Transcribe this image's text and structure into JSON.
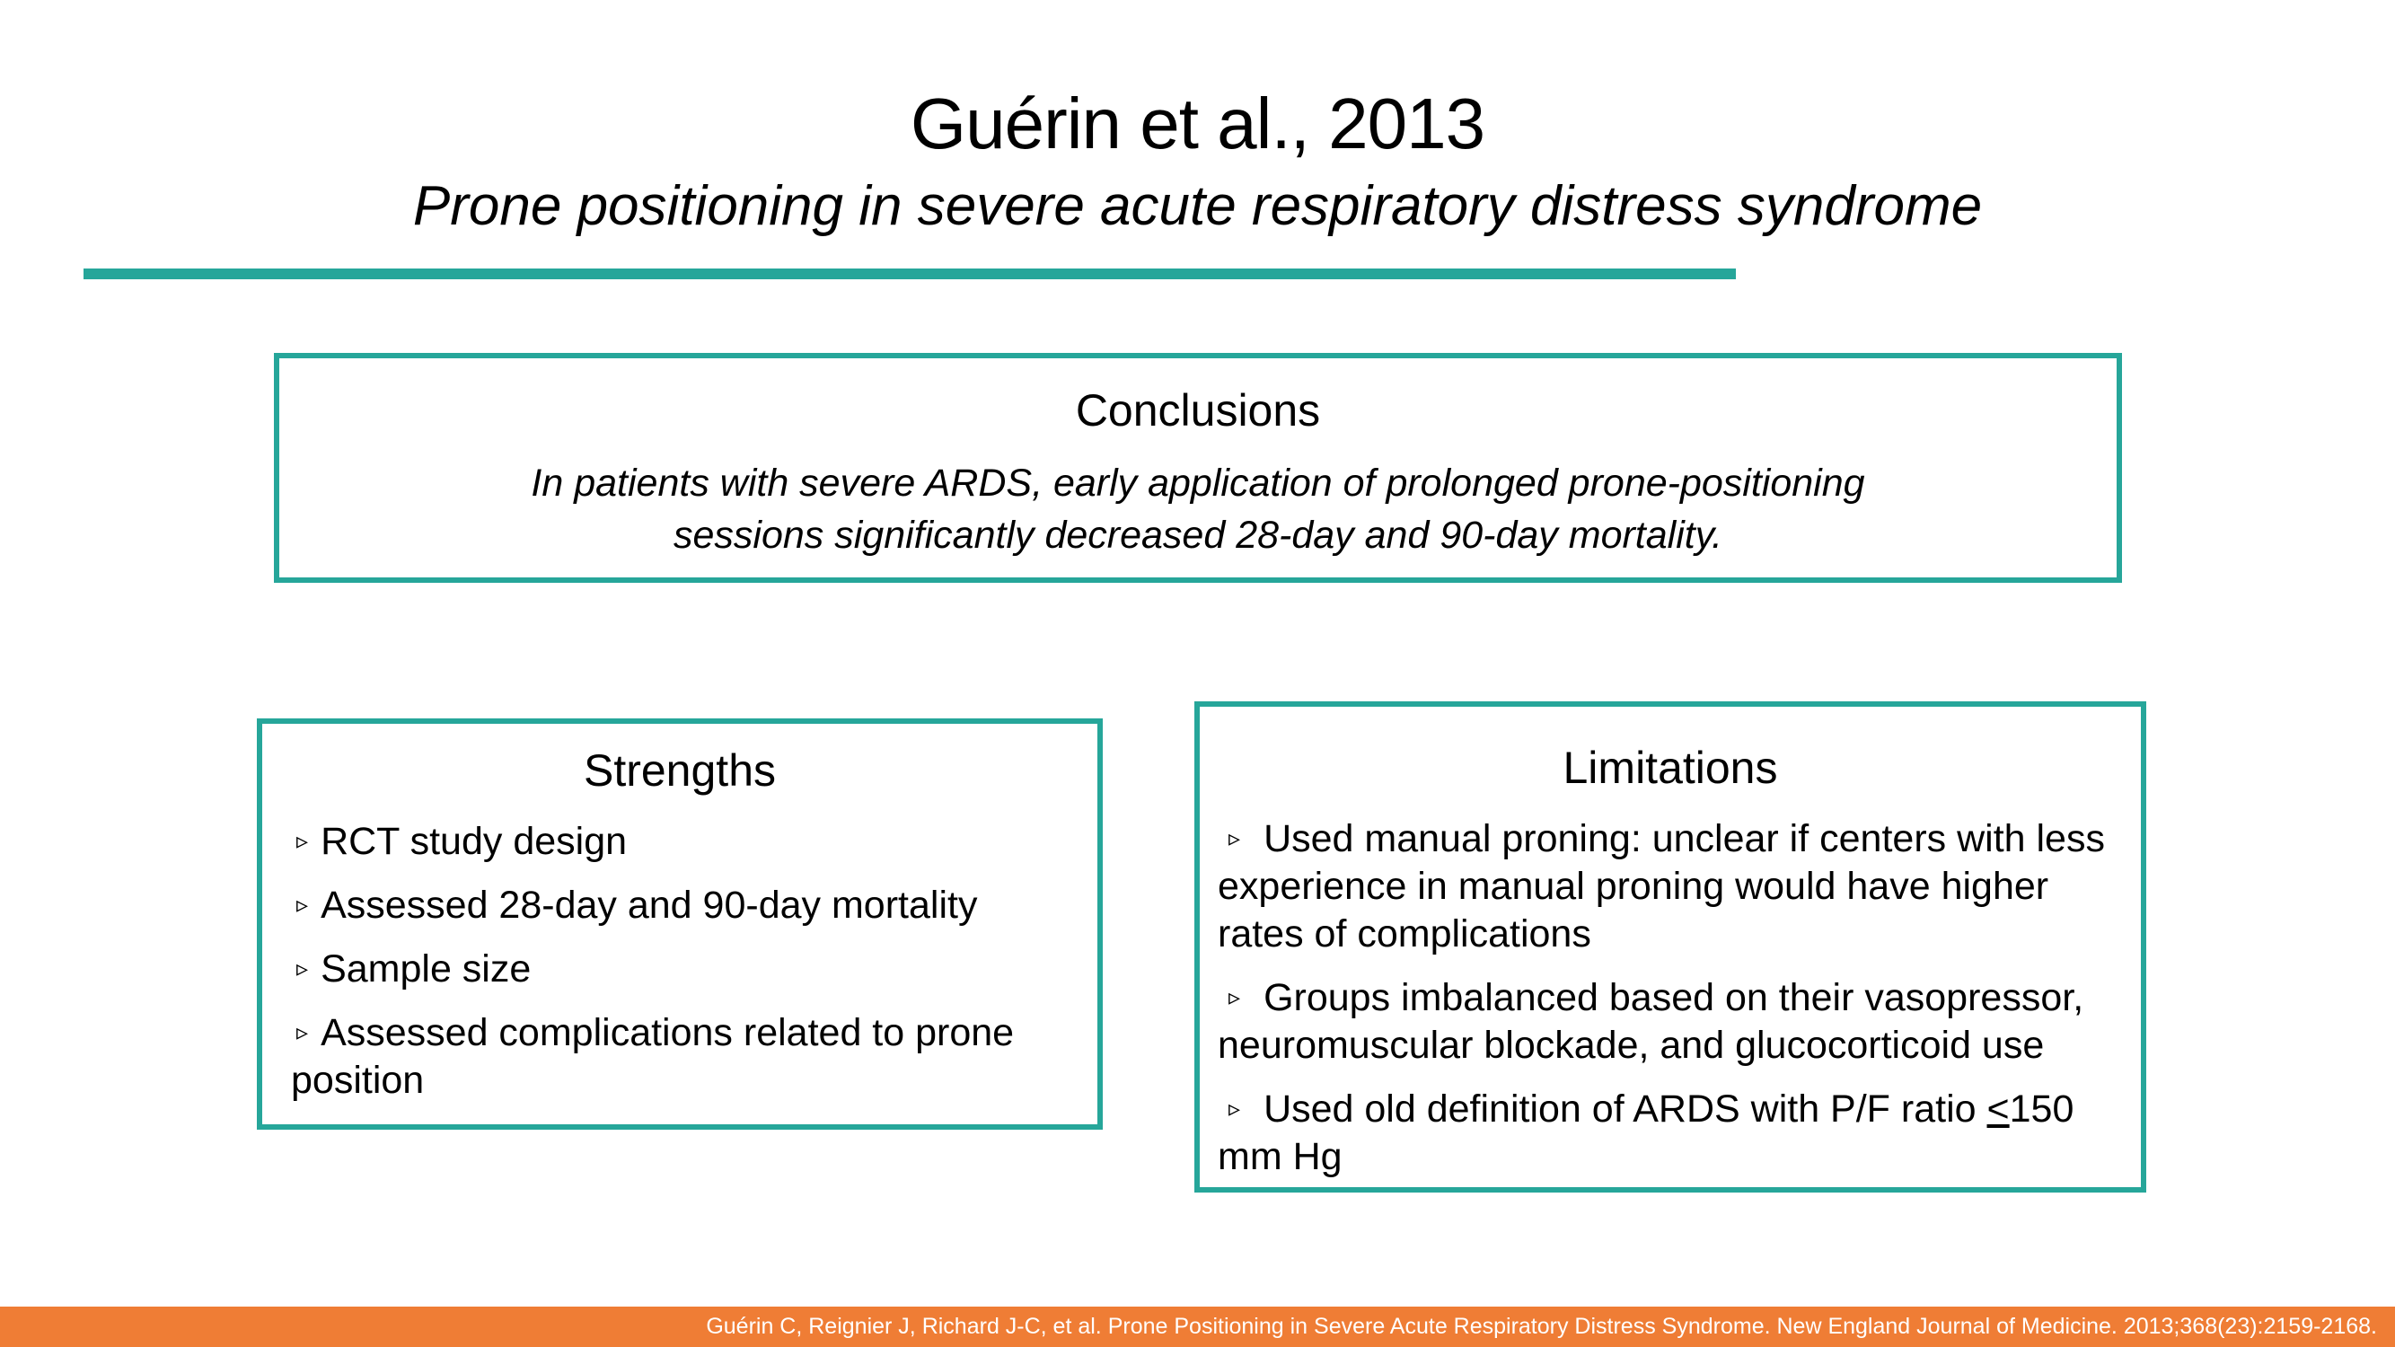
{
  "slide": {
    "title": "Guérin et al., 2013",
    "subtitle": "Prone positioning in severe acute respiratory distress syndrome"
  },
  "conclusions": {
    "heading": "Conclusions",
    "line1": "In patients with severe ARDS, early application of prolonged prone-positioning",
    "line2": "sessions significantly decreased 28-day and 90-day mortality."
  },
  "strengths": {
    "heading": "Strengths",
    "items": [
      "RCT study design",
      "Assessed 28-day and 90-day mortality",
      "Sample size",
      "Assessed complications related to prone position"
    ]
  },
  "limitations": {
    "heading": "Limitations",
    "items": [
      "Used manual proning: unclear if centers with less experience in manual proning would have higher rates of complications",
      "Groups imbalanced based on their vasopressor, neuromuscular blockade, and glucocorticoid use"
    ],
    "item3_before": "Used old definition of ARDS with P/F ratio ",
    "item3_symbol": "<",
    "item3_after": "150 mm Hg"
  },
  "bullet_symbol": "▹",
  "footer": {
    "citation": "Guérin C, Reignier J, Richard J-C, et al. Prone Positioning in Severe Acute Respiratory Distress Syndrome. New England Journal of Medicine. 2013;368(23):2159-2168."
  },
  "colors": {
    "accent": "#26a69a",
    "footer_bar": "#ef7d35"
  }
}
